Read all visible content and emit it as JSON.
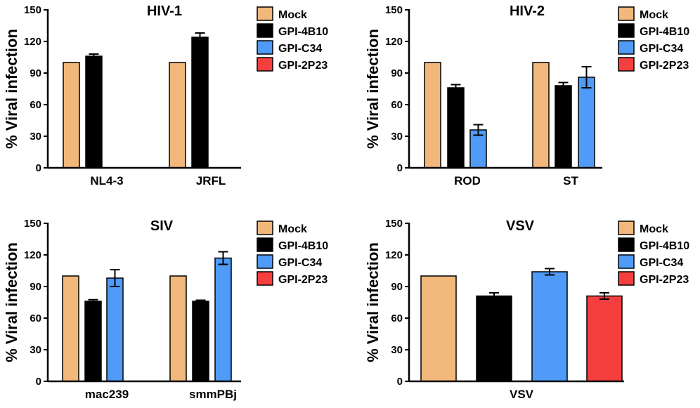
{
  "y_axis_label": "% Viral infection",
  "colors": {
    "Mock": "#F2B77A",
    "GPI-4B10": "#000000",
    "GPI-C34": "#4F9BF7",
    "GPI-2P23": "#F53F3F"
  },
  "chart_data": [
    {
      "type": "bar",
      "title": "HIV-1",
      "ylabel": "% Viral infection",
      "ylim": [
        0,
        150
      ],
      "yticks": [
        0,
        30,
        60,
        90,
        120,
        150
      ],
      "categories": [
        "NL4-3",
        "JRFL"
      ],
      "legend": [
        "Mock",
        "GPI-4B10",
        "GPI-C34",
        "GPI-2P23"
      ],
      "series": [
        {
          "name": "Mock",
          "values": [
            100,
            100
          ],
          "errors": [
            0,
            0
          ]
        },
        {
          "name": "GPI-4B10",
          "values": [
            106,
            124
          ],
          "errors": [
            2,
            4
          ]
        },
        {
          "name": "GPI-C34",
          "values": [
            null,
            null
          ],
          "errors": [
            null,
            null
          ]
        },
        {
          "name": "GPI-2P23",
          "values": [
            null,
            null
          ],
          "errors": [
            null,
            null
          ]
        }
      ]
    },
    {
      "type": "bar",
      "title": "HIV-2",
      "ylabel": "% Viral infection",
      "ylim": [
        0,
        150
      ],
      "yticks": [
        0,
        30,
        60,
        90,
        120,
        150
      ],
      "categories": [
        "ROD",
        "ST"
      ],
      "legend": [
        "Mock",
        "GPI-4B10",
        "GPI-C34",
        "GPI-2P23"
      ],
      "series": [
        {
          "name": "Mock",
          "values": [
            100,
            100
          ],
          "errors": [
            0,
            0
          ]
        },
        {
          "name": "GPI-4B10",
          "values": [
            76,
            78
          ],
          "errors": [
            3,
            3
          ]
        },
        {
          "name": "GPI-C34",
          "values": [
            36,
            86
          ],
          "errors": [
            5,
            10
          ]
        },
        {
          "name": "GPI-2P23",
          "values": [
            null,
            null
          ],
          "errors": [
            null,
            null
          ]
        }
      ]
    },
    {
      "type": "bar",
      "title": "SIV",
      "ylabel": "% Viral infection",
      "ylim": [
        0,
        150
      ],
      "yticks": [
        0,
        30,
        60,
        90,
        120,
        150
      ],
      "categories": [
        "mac239",
        "smmPBj"
      ],
      "legend": [
        "Mock",
        "GPI-4B10",
        "GPI-C34",
        "GPI-2P23"
      ],
      "series": [
        {
          "name": "Mock",
          "values": [
            100,
            100
          ],
          "errors": [
            0,
            0
          ]
        },
        {
          "name": "GPI-4B10",
          "values": [
            76,
            76
          ],
          "errors": [
            1.5,
            1
          ]
        },
        {
          "name": "GPI-C34",
          "values": [
            98,
            117
          ],
          "errors": [
            8,
            6
          ]
        },
        {
          "name": "GPI-2P23",
          "values": [
            null,
            null
          ],
          "errors": [
            null,
            null
          ]
        }
      ]
    },
    {
      "type": "bar",
      "title": "VSV",
      "ylabel": "% Viral infection",
      "ylim": [
        0,
        150
      ],
      "yticks": [
        0,
        30,
        60,
        90,
        120,
        150
      ],
      "categories": [
        "VSV"
      ],
      "legend": [
        "Mock",
        "GPI-4B10",
        "GPI-C34",
        "GPI-2P23"
      ],
      "series": [
        {
          "name": "Mock",
          "values": [
            100
          ],
          "errors": [
            0
          ]
        },
        {
          "name": "GPI-4B10",
          "values": [
            81
          ],
          "errors": [
            3
          ]
        },
        {
          "name": "GPI-C34",
          "values": [
            104
          ],
          "errors": [
            3
          ]
        },
        {
          "name": "GPI-2P23",
          "values": [
            81
          ],
          "errors": [
            3
          ]
        }
      ]
    }
  ]
}
